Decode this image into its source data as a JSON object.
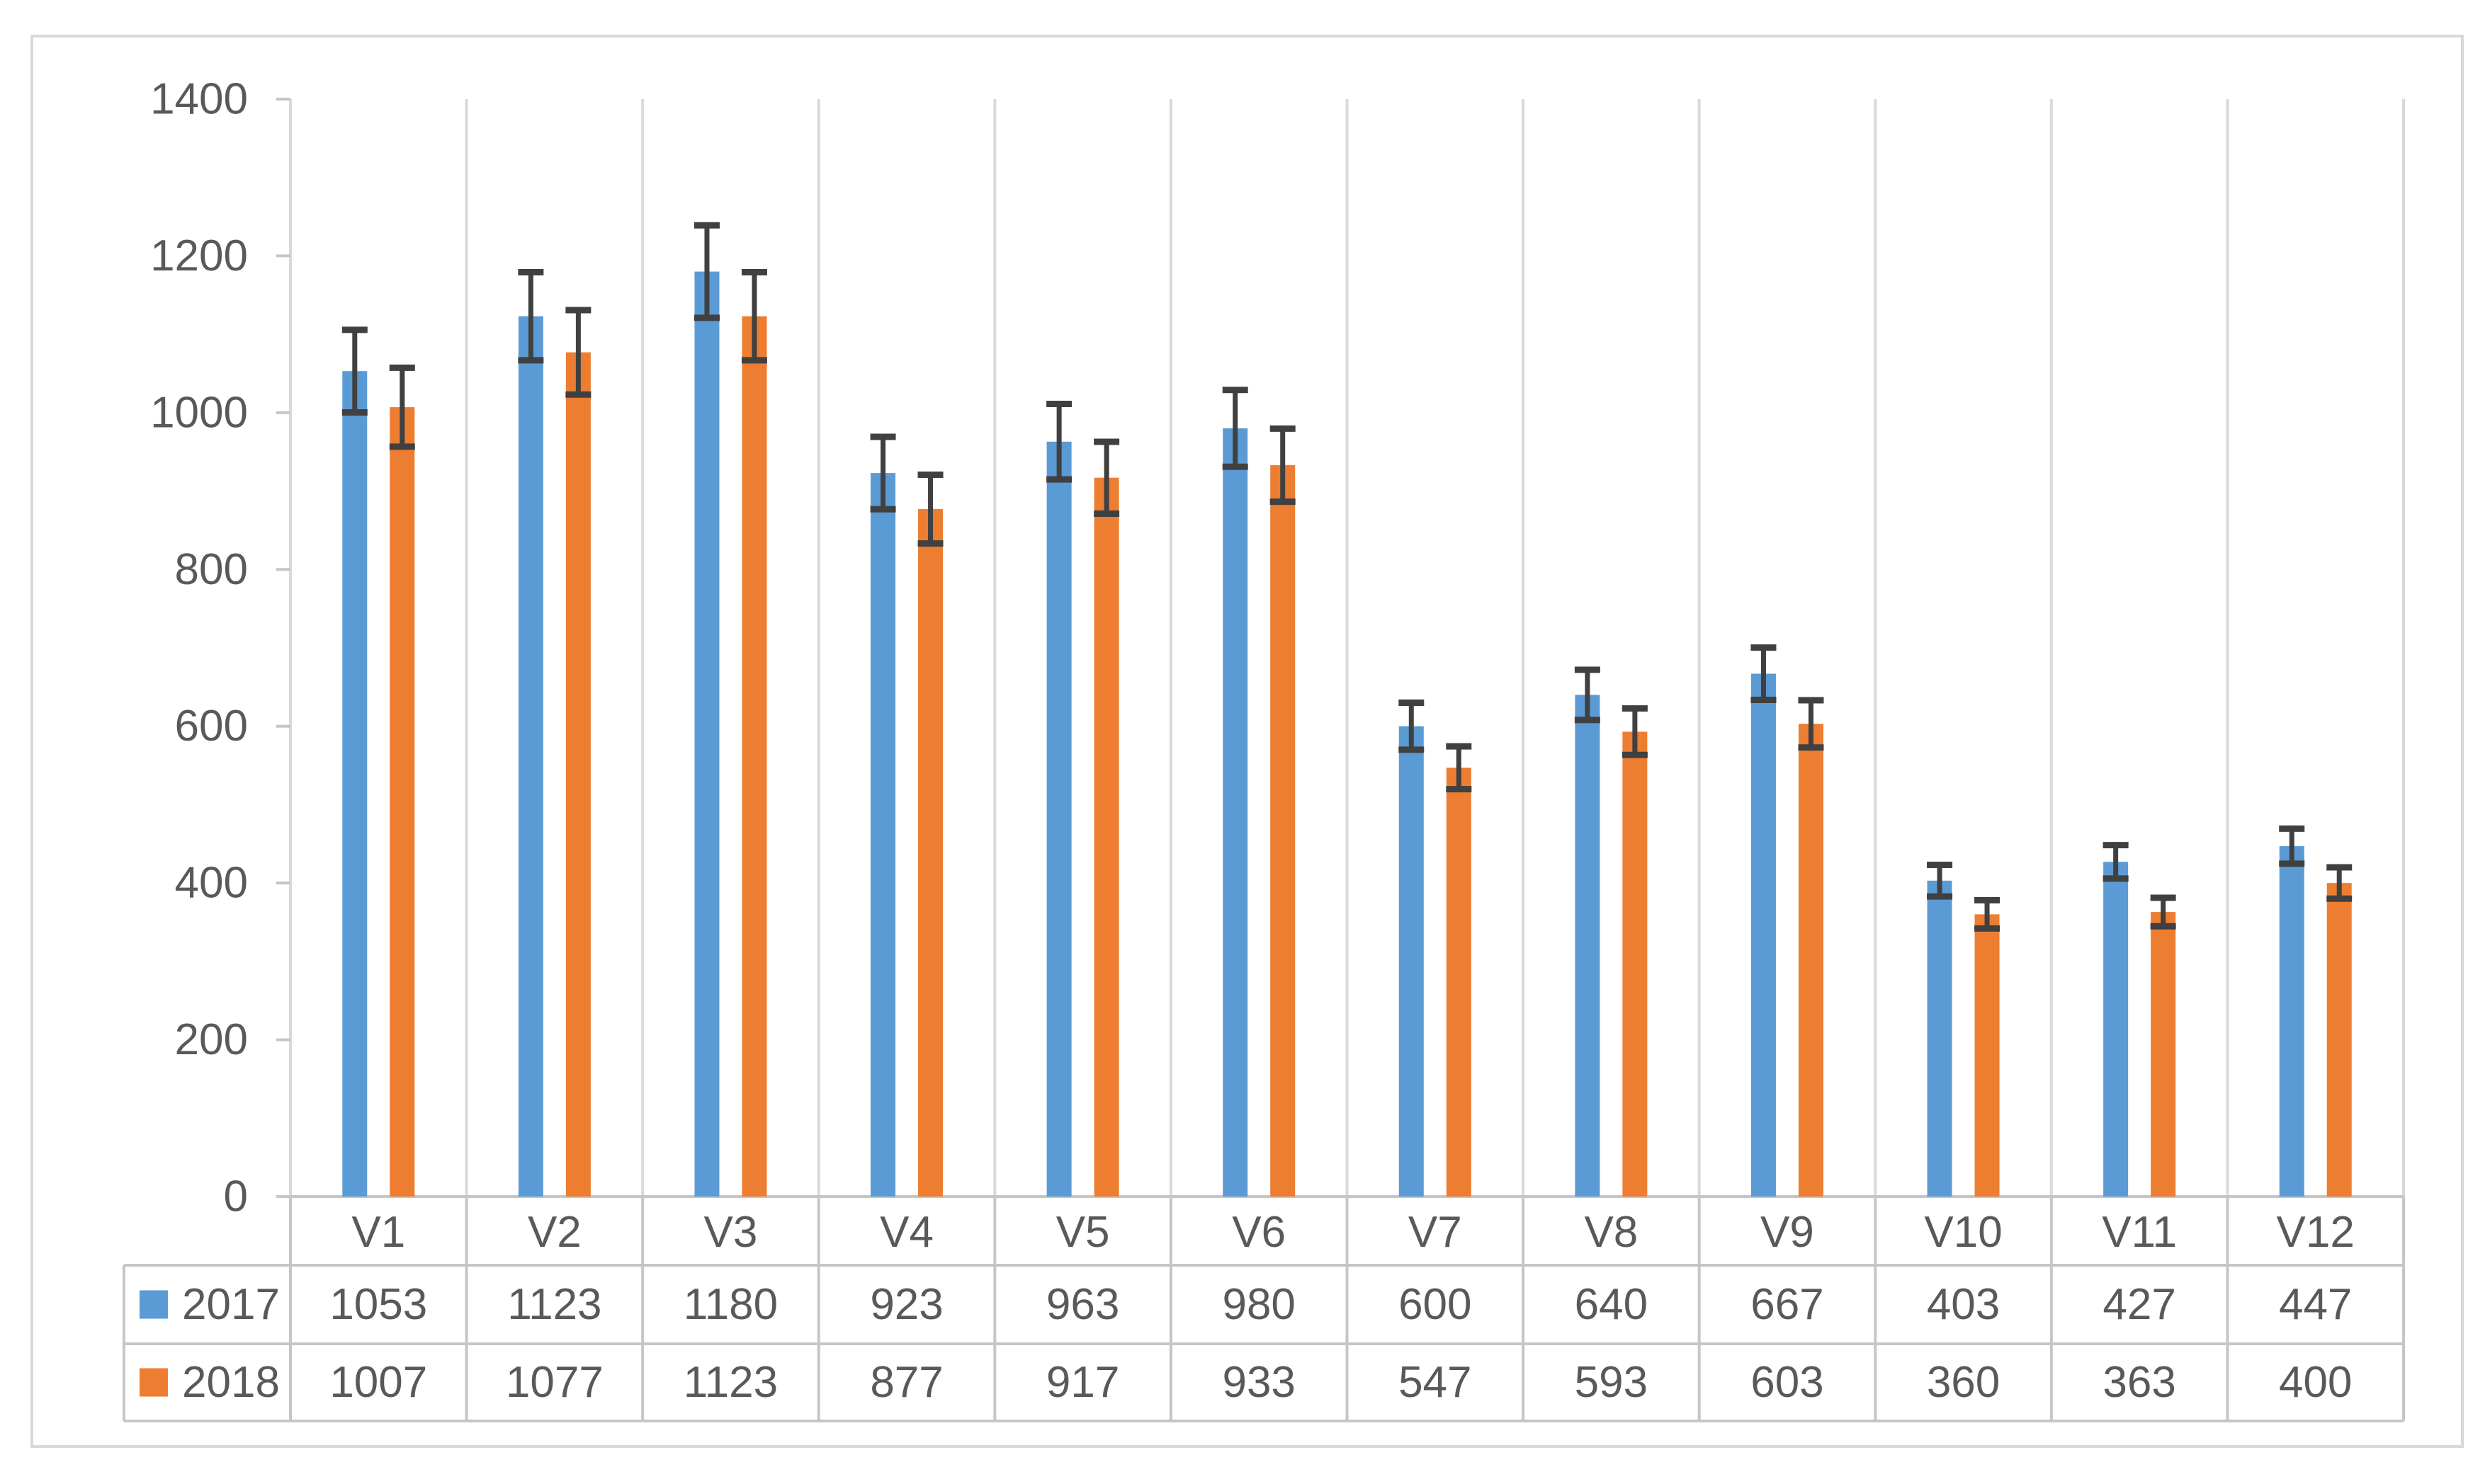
{
  "chart_data": {
    "type": "bar",
    "title": "",
    "xlabel": "",
    "ylabel": "",
    "categories": [
      "V1",
      "V2",
      "V3",
      "V4",
      "V5",
      "V6",
      "V7",
      "V8",
      "V9",
      "V10",
      "V11",
      "V12"
    ],
    "series": [
      {
        "name": "2017",
        "color": "#5B9BD5",
        "values": [
          1053,
          1123,
          1180,
          923,
          963,
          980,
          600,
          640,
          667,
          403,
          427,
          447
        ]
      },
      {
        "name": "2018",
        "color": "#ED7D31",
        "values": [
          1007,
          1077,
          1123,
          877,
          917,
          933,
          547,
          593,
          603,
          360,
          363,
          400
        ]
      }
    ],
    "error_bars": {
      "type": "percentage",
      "value": 5,
      "color": "#404040"
    },
    "y_axis": {
      "min": 0,
      "max": 1400,
      "step": 200,
      "tick_labels": [
        "1400",
        "1200",
        "1000",
        "800",
        "600",
        "400",
        "200",
        "0"
      ]
    },
    "gridlines": {
      "vertical_category_separators": true,
      "horizontal": false
    },
    "legend_position": "data-table-left-column",
    "data_table_shown": true,
    "colors": {
      "series_2017": "#5B9BD5",
      "series_2018": "#ED7D31",
      "error_bar": "#404040",
      "gridline": "#D9D9D9",
      "frame_border": "#D9D9D9",
      "table_border": "#C6C6C6",
      "text": "#595959"
    }
  }
}
